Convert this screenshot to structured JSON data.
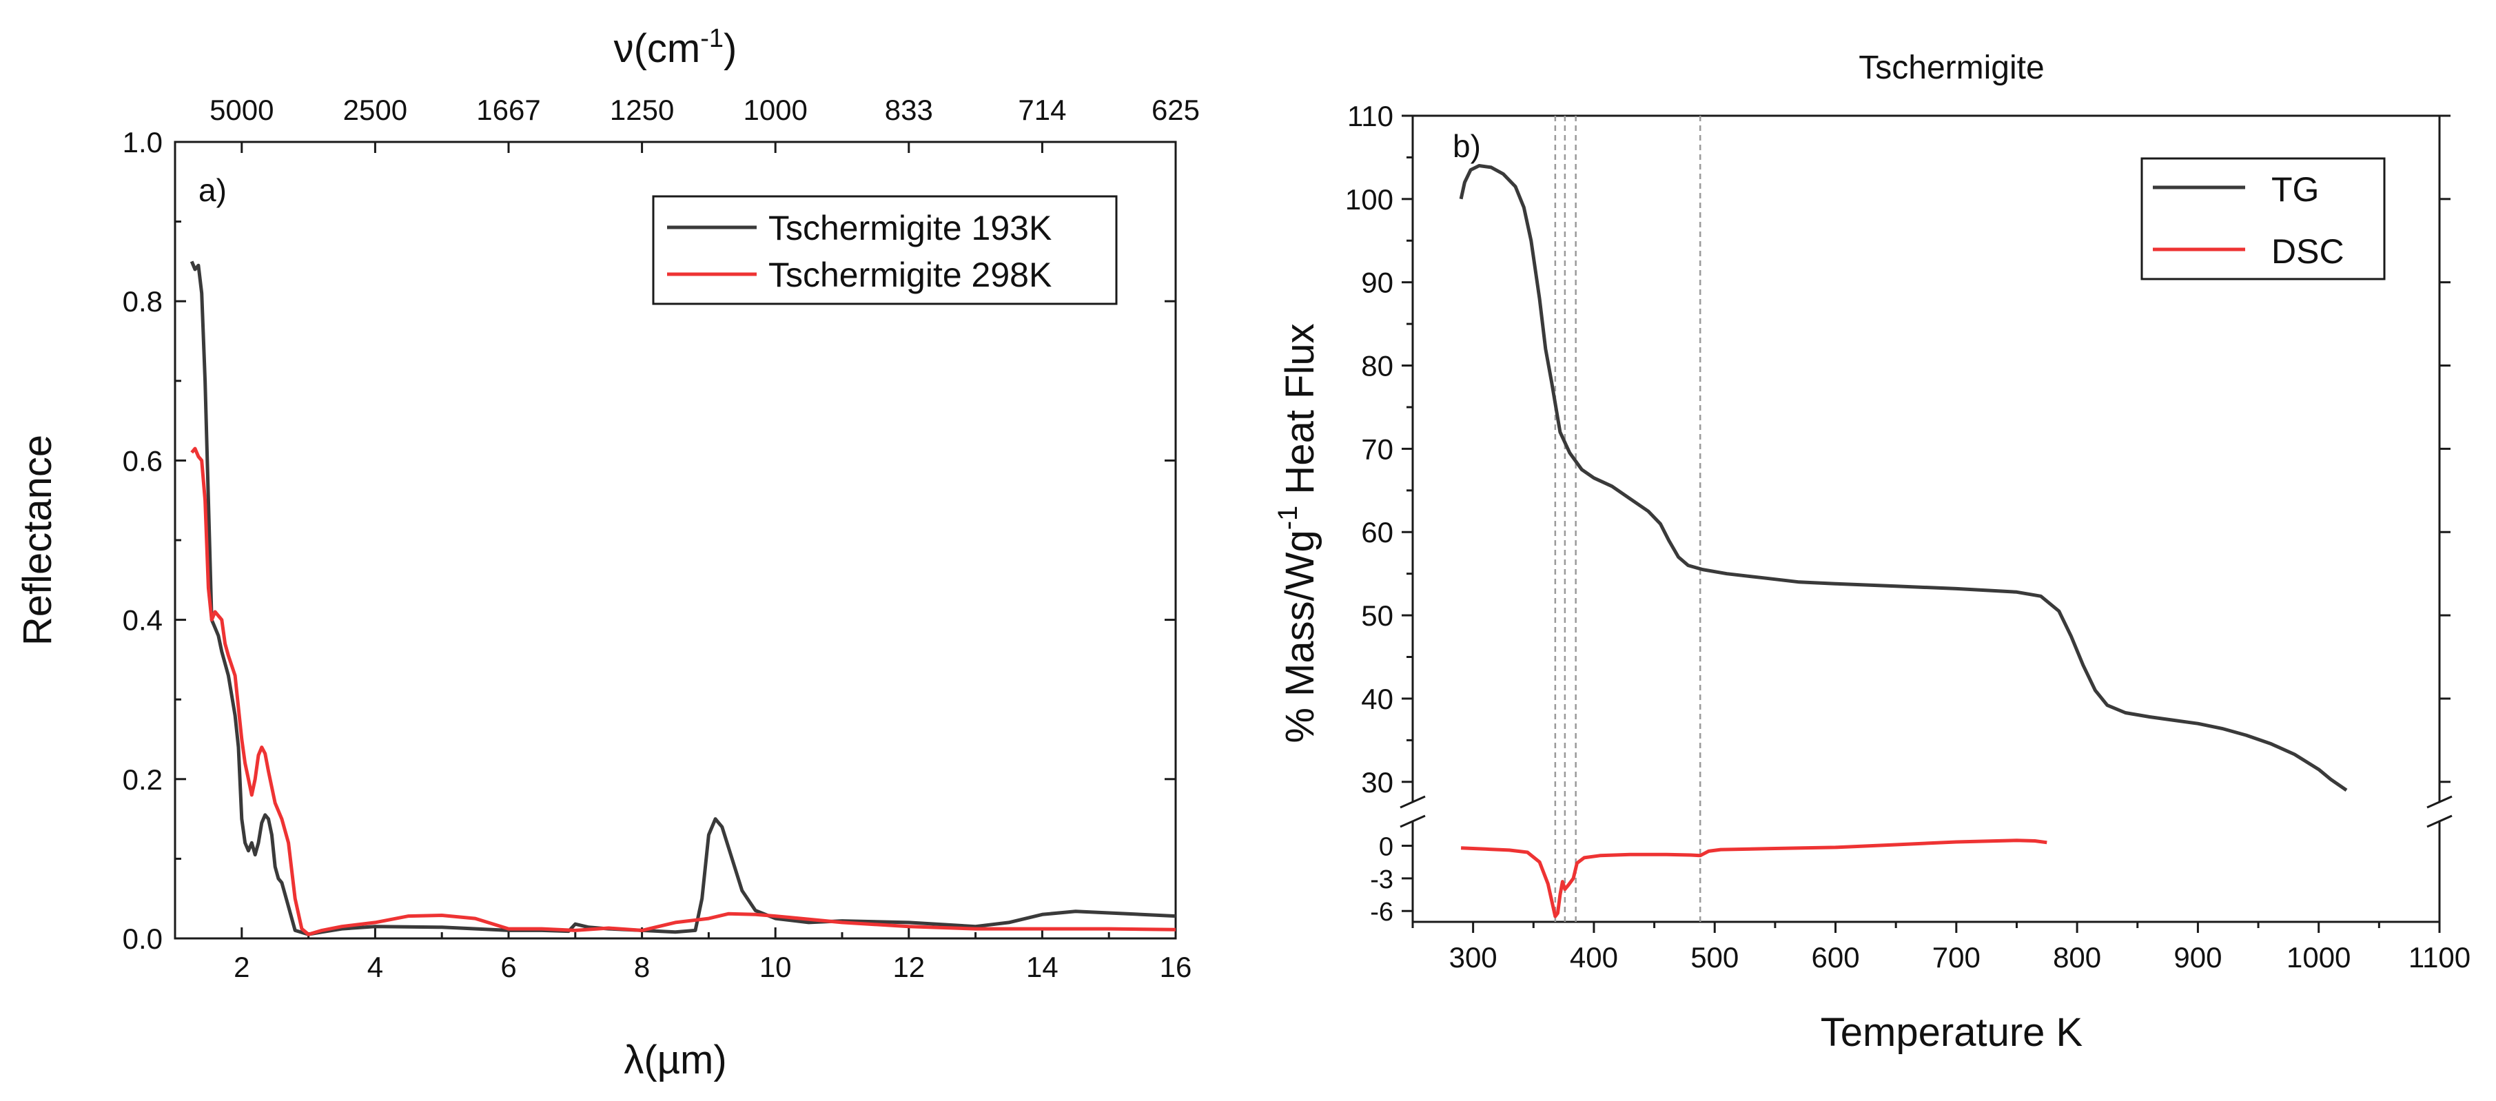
{
  "chart_data": [
    {
      "panel": "a)",
      "type": "line",
      "title": "",
      "xlabel": "λ(µm)",
      "ylabel": "Reflectance",
      "xlim": [
        1,
        16
      ],
      "ylim": [
        0,
        1.0
      ],
      "x_ticks": [
        2,
        4,
        6,
        8,
        10,
        12,
        14,
        16
      ],
      "y_ticks": [
        "0.0",
        "0.2",
        "0.4",
        "0.6",
        "0.8",
        "1.0"
      ],
      "top_axis": {
        "label": "ν(cm",
        "label_sup": "-1",
        "label_end": ")",
        "tick_labels": [
          "5000",
          "2500",
          "1667",
          "1250",
          "1000",
          "833",
          "714",
          "625"
        ],
        "tick_positions_um": [
          2,
          4,
          6,
          8,
          10,
          12,
          14,
          16
        ]
      },
      "legend": "top-right",
      "series": [
        {
          "name": "Tschermigite 193K",
          "color": "#3a3a3a",
          "points": [
            [
              1.25,
              0.85
            ],
            [
              1.3,
              0.84
            ],
            [
              1.35,
              0.845
            ],
            [
              1.4,
              0.81
            ],
            [
              1.45,
              0.7
            ],
            [
              1.5,
              0.55
            ],
            [
              1.55,
              0.4
            ],
            [
              1.6,
              0.39
            ],
            [
              1.65,
              0.38
            ],
            [
              1.7,
              0.36
            ],
            [
              1.8,
              0.33
            ],
            [
              1.9,
              0.28
            ],
            [
              1.95,
              0.24
            ],
            [
              2.0,
              0.15
            ],
            [
              2.05,
              0.12
            ],
            [
              2.1,
              0.11
            ],
            [
              2.15,
              0.12
            ],
            [
              2.2,
              0.105
            ],
            [
              2.25,
              0.12
            ],
            [
              2.3,
              0.145
            ],
            [
              2.35,
              0.155
            ],
            [
              2.4,
              0.15
            ],
            [
              2.45,
              0.13
            ],
            [
              2.5,
              0.09
            ],
            [
              2.55,
              0.075
            ],
            [
              2.6,
              0.07
            ],
            [
              2.7,
              0.04
            ],
            [
              2.8,
              0.01
            ],
            [
              3.0,
              0.005
            ],
            [
              3.2,
              0.008
            ],
            [
              3.5,
              0.012
            ],
            [
              4,
              0.015
            ],
            [
              5,
              0.014
            ],
            [
              6,
              0.01
            ],
            [
              6.5,
              0.01
            ],
            [
              6.9,
              0.009
            ],
            [
              7.0,
              0.018
            ],
            [
              7.2,
              0.014
            ],
            [
              7.5,
              0.012
            ],
            [
              8.0,
              0.01
            ],
            [
              8.5,
              0.008
            ],
            [
              8.8,
              0.01
            ],
            [
              8.9,
              0.05
            ],
            [
              9.0,
              0.13
            ],
            [
              9.1,
              0.15
            ],
            [
              9.2,
              0.14
            ],
            [
              9.35,
              0.1
            ],
            [
              9.5,
              0.06
            ],
            [
              9.7,
              0.035
            ],
            [
              10.0,
              0.025
            ],
            [
              10.5,
              0.02
            ],
            [
              11,
              0.022
            ],
            [
              12,
              0.02
            ],
            [
              13,
              0.015
            ],
            [
              13.5,
              0.02
            ],
            [
              14,
              0.03
            ],
            [
              14.5,
              0.034
            ],
            [
              15,
              0.032
            ],
            [
              16,
              0.028
            ]
          ]
        },
        {
          "name": "Tschermigite 298K",
          "color": "#ee3333",
          "points": [
            [
              1.25,
              0.61
            ],
            [
              1.3,
              0.615
            ],
            [
              1.35,
              0.605
            ],
            [
              1.4,
              0.6
            ],
            [
              1.45,
              0.55
            ],
            [
              1.5,
              0.44
            ],
            [
              1.55,
              0.4
            ],
            [
              1.6,
              0.41
            ],
            [
              1.7,
              0.4
            ],
            [
              1.75,
              0.37
            ],
            [
              1.8,
              0.355
            ],
            [
              1.9,
              0.33
            ],
            [
              2.0,
              0.25
            ],
            [
              2.05,
              0.22
            ],
            [
              2.1,
              0.2
            ],
            [
              2.15,
              0.18
            ],
            [
              2.2,
              0.2
            ],
            [
              2.25,
              0.23
            ],
            [
              2.3,
              0.24
            ],
            [
              2.35,
              0.232
            ],
            [
              2.4,
              0.21
            ],
            [
              2.5,
              0.17
            ],
            [
              2.6,
              0.15
            ],
            [
              2.7,
              0.12
            ],
            [
              2.8,
              0.05
            ],
            [
              2.9,
              0.012
            ],
            [
              3.0,
              0.005
            ],
            [
              3.2,
              0.01
            ],
            [
              3.5,
              0.015
            ],
            [
              4,
              0.02
            ],
            [
              4.5,
              0.028
            ],
            [
              5,
              0.029
            ],
            [
              5.5,
              0.025
            ],
            [
              6,
              0.012
            ],
            [
              6.5,
              0.012
            ],
            [
              7,
              0.01
            ],
            [
              7.5,
              0.013
            ],
            [
              8,
              0.01
            ],
            [
              8.5,
              0.02
            ],
            [
              9,
              0.025
            ],
            [
              9.3,
              0.031
            ],
            [
              9.7,
              0.03
            ],
            [
              10,
              0.028
            ],
            [
              11,
              0.02
            ],
            [
              12,
              0.015
            ],
            [
              13,
              0.012
            ],
            [
              14,
              0.012
            ],
            [
              15,
              0.012
            ],
            [
              16,
              0.011
            ]
          ]
        }
      ]
    },
    {
      "panel": "b)",
      "type": "line",
      "title": "Tschermigite",
      "xlabel": "Temperature K",
      "ylabel": "% Mass/Wg",
      "ylabel_sup": "-1",
      "ylabel_end": " Heat Flux",
      "xlim": [
        250,
        1100
      ],
      "x_ticks": [
        300,
        400,
        500,
        600,
        700,
        800,
        900,
        1000,
        1100
      ],
      "upper_ylim": [
        27.5,
        110
      ],
      "upper_y_ticks": [
        30,
        40,
        50,
        60,
        70,
        80,
        90,
        100,
        110
      ],
      "lower_ylim": [
        -7,
        2
      ],
      "lower_y_ticks": [
        "0",
        "-3",
        "-6"
      ],
      "axis_break": true,
      "vertical_markers_K": [
        368,
        376,
        385,
        488
      ],
      "legend": "top-right",
      "series": [
        {
          "name": "TG",
          "color": "#3a3a3a",
          "axis": "upper",
          "points": [
            [
              290,
              100
            ],
            [
              293,
              102
            ],
            [
              298,
              103.5
            ],
            [
              305,
              104
            ],
            [
              315,
              103.8
            ],
            [
              325,
              103
            ],
            [
              335,
              101.5
            ],
            [
              342,
              99
            ],
            [
              348,
              95
            ],
            [
              355,
              88
            ],
            [
              360,
              82
            ],
            [
              365,
              78
            ],
            [
              372,
              72
            ],
            [
              380,
              69.5
            ],
            [
              390,
              67.5
            ],
            [
              400,
              66.5
            ],
            [
              415,
              65.5
            ],
            [
              430,
              64
            ],
            [
              445,
              62.5
            ],
            [
              455,
              61
            ],
            [
              462,
              59
            ],
            [
              470,
              57
            ],
            [
              478,
              56
            ],
            [
              490,
              55.5
            ],
            [
              510,
              55
            ],
            [
              540,
              54.5
            ],
            [
              570,
              54
            ],
            [
              600,
              53.8
            ],
            [
              650,
              53.5
            ],
            [
              700,
              53.2
            ],
            [
              750,
              52.8
            ],
            [
              770,
              52.3
            ],
            [
              785,
              50.5
            ],
            [
              795,
              47.5
            ],
            [
              805,
              44
            ],
            [
              815,
              41
            ],
            [
              825,
              39.2
            ],
            [
              840,
              38.3
            ],
            [
              860,
              37.8
            ],
            [
              880,
              37.4
            ],
            [
              900,
              37
            ],
            [
              920,
              36.4
            ],
            [
              940,
              35.6
            ],
            [
              960,
              34.6
            ],
            [
              980,
              33.3
            ],
            [
              1000,
              31.5
            ],
            [
              1010,
              30.3
            ],
            [
              1023,
              29
            ]
          ]
        },
        {
          "name": "DSC",
          "color": "#ee3333",
          "axis": "lower",
          "points": [
            [
              290,
              -0.2
            ],
            [
              310,
              -0.3
            ],
            [
              330,
              -0.4
            ],
            [
              345,
              -0.6
            ],
            [
              355,
              -1.5
            ],
            [
              362,
              -3.5
            ],
            [
              366,
              -5.5
            ],
            [
              368,
              -6.5
            ],
            [
              370,
              -6.2
            ],
            [
              372,
              -4.5
            ],
            [
              374,
              -3.3
            ],
            [
              376,
              -4
            ],
            [
              379,
              -3.6
            ],
            [
              383,
              -3
            ],
            [
              386,
              -1.6
            ],
            [
              392,
              -1.1
            ],
            [
              405,
              -0.9
            ],
            [
              430,
              -0.8
            ],
            [
              460,
              -0.8
            ],
            [
              480,
              -0.85
            ],
            [
              488,
              -0.9
            ],
            [
              495,
              -0.5
            ],
            [
              505,
              -0.35
            ],
            [
              550,
              -0.25
            ],
            [
              600,
              -0.15
            ],
            [
              650,
              0.1
            ],
            [
              700,
              0.35
            ],
            [
              750,
              0.5
            ],
            [
              765,
              0.45
            ],
            [
              775,
              0.3
            ]
          ]
        }
      ]
    }
  ]
}
